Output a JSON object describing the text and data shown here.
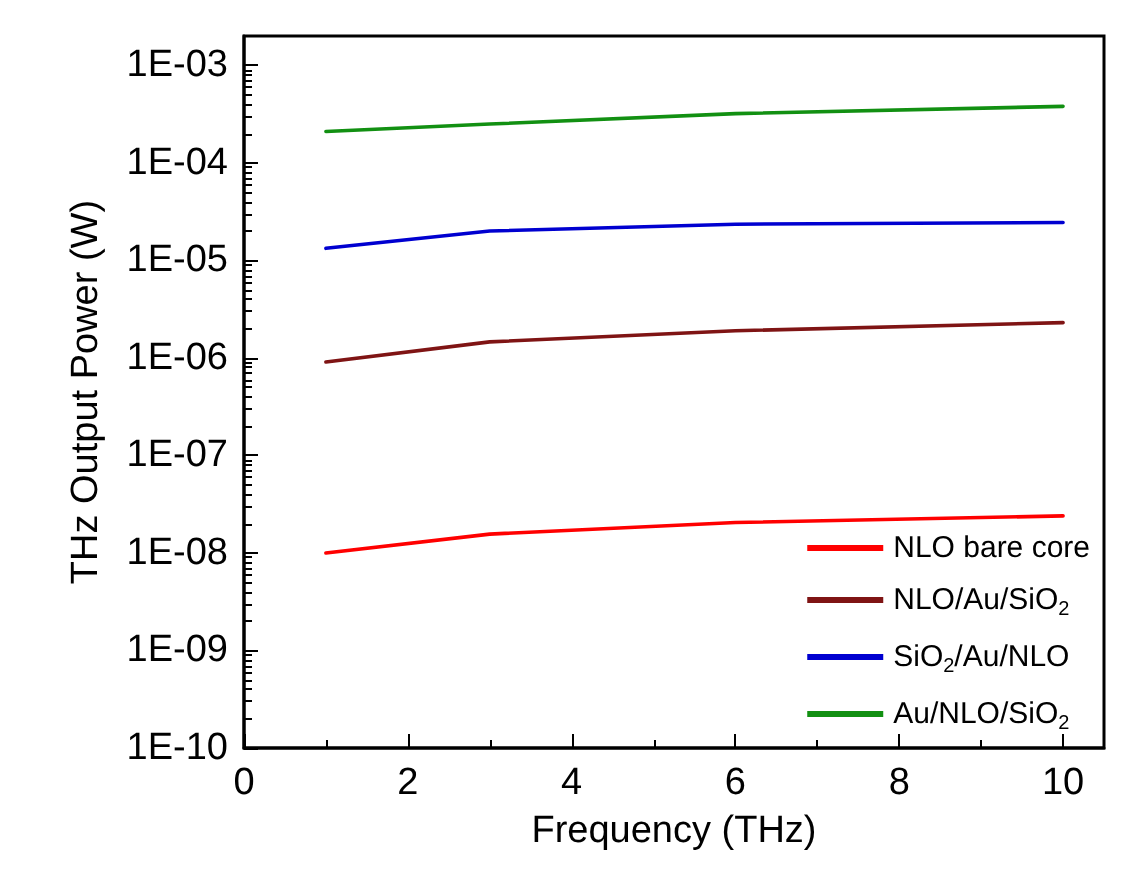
{
  "chart_data": {
    "type": "line",
    "xlabel": "Frequency (THz)",
    "ylabel": "THz Output Power (W)",
    "log": "y",
    "grid": false,
    "legend": "bottom right",
    "marker": "none",
    "line_style": "solid",
    "x": [
      1,
      3,
      6,
      10
    ],
    "series": [
      {
        "name": "NLO bare core",
        "color": "#ff0000",
        "values": [
          1e-08,
          1.56e-08,
          2.05e-08,
          2.4e-08
        ]
      },
      {
        "name": "NLO/Au/SiO$_{2}$",
        "color": "#7f1414",
        "values": [
          9.1e-07,
          1.46e-06,
          1.9e-06,
          2.3e-06
        ]
      },
      {
        "name": "SiO$_{2}$/Au/NLO",
        "color": "#0000d0",
        "values": [
          1.33e-05,
          2e-05,
          2.35e-05,
          2.45e-05
        ]
      },
      {
        "name": "Au/NLO/SiO$_{2}$",
        "color": "#129012",
        "values": [
          0.00021,
          0.00025,
          0.00032,
          0.00038
        ]
      }
    ],
    "xlim": [
      0,
      10.5
    ],
    "xticks": [
      0,
      2,
      4,
      6,
      8,
      10
    ],
    "ylim": [
      1e-10,
      0.002
    ],
    "yticks": [
      {
        "value": 1e-10,
        "label": "1E-10"
      },
      {
        "value": 1e-09,
        "label": "1E-09"
      },
      {
        "value": 1e-08,
        "label": "1E-08"
      },
      {
        "value": 1e-07,
        "label": "1E-07"
      },
      {
        "value": 1e-06,
        "label": "1E-06"
      },
      {
        "value": 1e-05,
        "label": "1E-05"
      },
      {
        "value": 0.0001,
        "label": "1E-04"
      },
      {
        "value": 0.001,
        "label": "1E-03"
      }
    ]
  }
}
